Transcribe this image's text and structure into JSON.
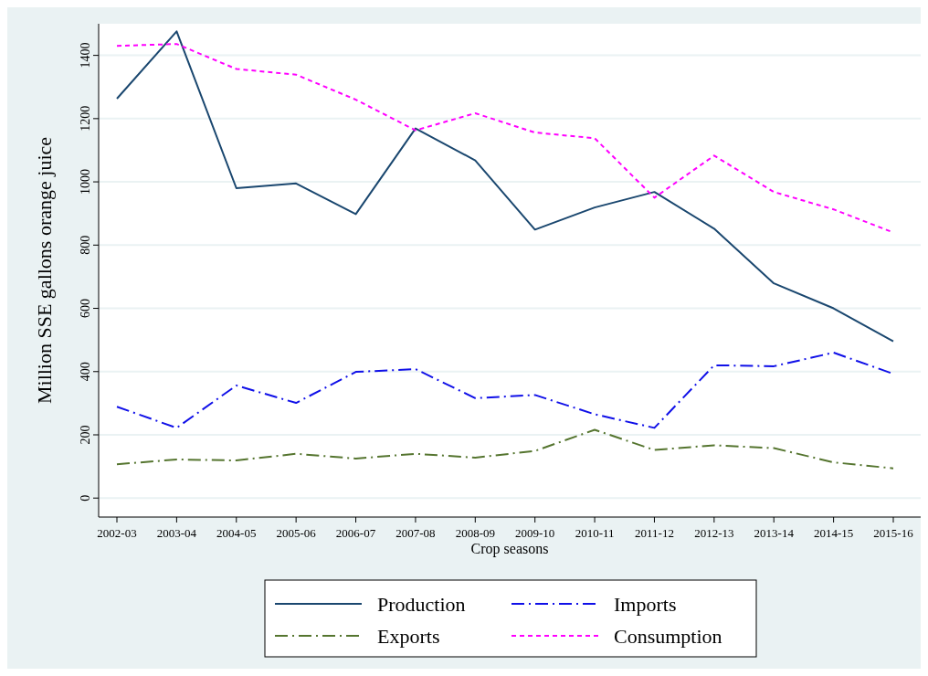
{
  "chart_data": {
    "type": "line",
    "xlabel": "Crop seasons",
    "ylabel": "Million SSE gallons orange juice",
    "categories": [
      "2002-03",
      "2003-04",
      "2004-05",
      "2005-06",
      "2006-07",
      "2007-08",
      "2008-09",
      "2009-10",
      "2010-11",
      "2011-12",
      "2012-13",
      "2013-14",
      "2014-15",
      "2015-16"
    ],
    "ylim": [
      -60,
      1500
    ],
    "yticks": [
      0,
      200,
      400,
      600,
      800,
      1000,
      1200,
      1400
    ],
    "grid": "y",
    "legend": "bottom",
    "series": [
      {
        "name": "Production",
        "color": "#1a476f",
        "line_style": "solid",
        "values": [
          1263,
          1476,
          980,
          995,
          898,
          1169,
          1068,
          849,
          919,
          968,
          852,
          679,
          600,
          496
        ]
      },
      {
        "name": "Imports",
        "color": "#1010e8",
        "line_style": "dashdot",
        "values": [
          289,
          222,
          356,
          301,
          399,
          408,
          316,
          326,
          265,
          222,
          420,
          417,
          460,
          393
        ]
      },
      {
        "name": "Exports",
        "color": "#55752f",
        "line_style": "dashdot",
        "values": [
          107,
          122,
          119,
          140,
          125,
          140,
          128,
          149,
          216,
          152,
          167,
          158,
          113,
          94
        ]
      },
      {
        "name": "Consumption",
        "color": "#ff00ff",
        "line_style": "dashed",
        "values": [
          1430,
          1436,
          1357,
          1339,
          1260,
          1163,
          1217,
          1156,
          1138,
          950,
          1083,
          968,
          913,
          840
        ]
      }
    ]
  }
}
